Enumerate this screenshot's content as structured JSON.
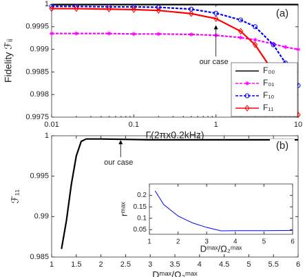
{
  "chart_data": [
    {
      "type": "line",
      "panel_label": "(a)",
      "xlabel": "Γ(2πx0.2kHz)",
      "ylabel": "Fidelity ℱᵢⱼ",
      "annotation": "our case",
      "xscale": "log",
      "legend": "lower right",
      "grid": false,
      "x": [
        0.01,
        0.02,
        0.05,
        0.1,
        0.2,
        0.5,
        1,
        2,
        3,
        5,
        7,
        10
      ],
      "xlim": [
        0.01,
        10
      ],
      "xticks": [
        0.01,
        0.1,
        1,
        10
      ],
      "ylim": [
        0.9975,
        1
      ],
      "yticks": [
        0.9975,
        0.998,
        0.9985,
        0.999,
        0.9995,
        1
      ],
      "series": [
        {
          "name": "F₀₀",
          "color": "#000000",
          "marker": "none",
          "linestyle": "solid",
          "values": [
            0.99999,
            0.99999,
            0.99999,
            0.99999,
            0.99999,
            0.99999,
            0.99999,
            0.99999,
            0.99999,
            0.99999,
            0.99999,
            0.99999
          ]
        },
        {
          "name": "F₀₁",
          "color": "#ff00ff",
          "marker": "star",
          "linestyle": "dashed",
          "values": [
            0.99935,
            0.99935,
            0.99935,
            0.99934,
            0.99934,
            0.99933,
            0.99931,
            0.99926,
            0.99921,
            0.99912,
            0.99905,
            0.999
          ]
        },
        {
          "name": "F₁₀",
          "color": "#0000ff",
          "marker": "circle",
          "linestyle": "dashed",
          "values": [
            0.99995,
            0.99995,
            0.99994,
            0.99994,
            0.99993,
            0.99989,
            0.9998,
            0.99965,
            0.9995,
            0.9991,
            0.9987,
            0.9982
          ]
        },
        {
          "name": "F₁₁",
          "color": "#ff0000",
          "marker": "diamond",
          "linestyle": "solid",
          "values": [
            0.9999,
            0.9999,
            0.99989,
            0.99988,
            0.99986,
            0.99979,
            0.99968,
            0.9994,
            0.9991,
            0.9985,
            0.998,
            0.99755
          ]
        }
      ]
    },
    {
      "type": "line",
      "panel_label": "(b)",
      "xlabel": "Dᵐᵃˣ/Ω₂ᵐᵃˣ",
      "ylabel": "ℱ₁₁",
      "annotation": "our case",
      "grid": false,
      "x": [
        1.2,
        1.3,
        1.4,
        1.5,
        1.6,
        1.7,
        2,
        3,
        4,
        5,
        6
      ],
      "xlim": [
        1,
        6
      ],
      "xticks": [
        1,
        1.5,
        2,
        2.5,
        3,
        3.5,
        4,
        4.5,
        5,
        5.5,
        6
      ],
      "ylim": [
        0.985,
        1
      ],
      "yticks": [
        0.985,
        0.99,
        0.995,
        1
      ],
      "series": [
        {
          "color": "#000000",
          "marker": "none",
          "linestyle": "solid",
          "values": [
            0.986,
            0.9895,
            0.994,
            0.9975,
            0.9993,
            0.9996,
            0.9996,
            0.9995,
            0.9995,
            0.9995,
            0.9995
          ]
        }
      ]
    },
    {
      "type": "line",
      "xlabel": "Dᵐᵃˣ/Ω₂ᵐᵃˣ",
      "ylabel": "rᵐᵃˣ",
      "grid": false,
      "x": [
        1.2,
        1.5,
        2,
        2.5,
        3,
        3.5,
        4,
        5,
        6
      ],
      "xlim": [
        1,
        6
      ],
      "xticks": [
        1,
        2,
        3,
        4,
        5,
        6
      ],
      "ylim": [
        0.03,
        0.25
      ],
      "yticks": [
        0.05,
        0.1,
        0.15,
        0.2
      ],
      "series": [
        {
          "color": "#0000ff",
          "marker": "none",
          "linestyle": "solid",
          "values": [
            0.22,
            0.16,
            0.11,
            0.08,
            0.06,
            0.045,
            0.046,
            0.046,
            0.047
          ]
        }
      ]
    }
  ]
}
